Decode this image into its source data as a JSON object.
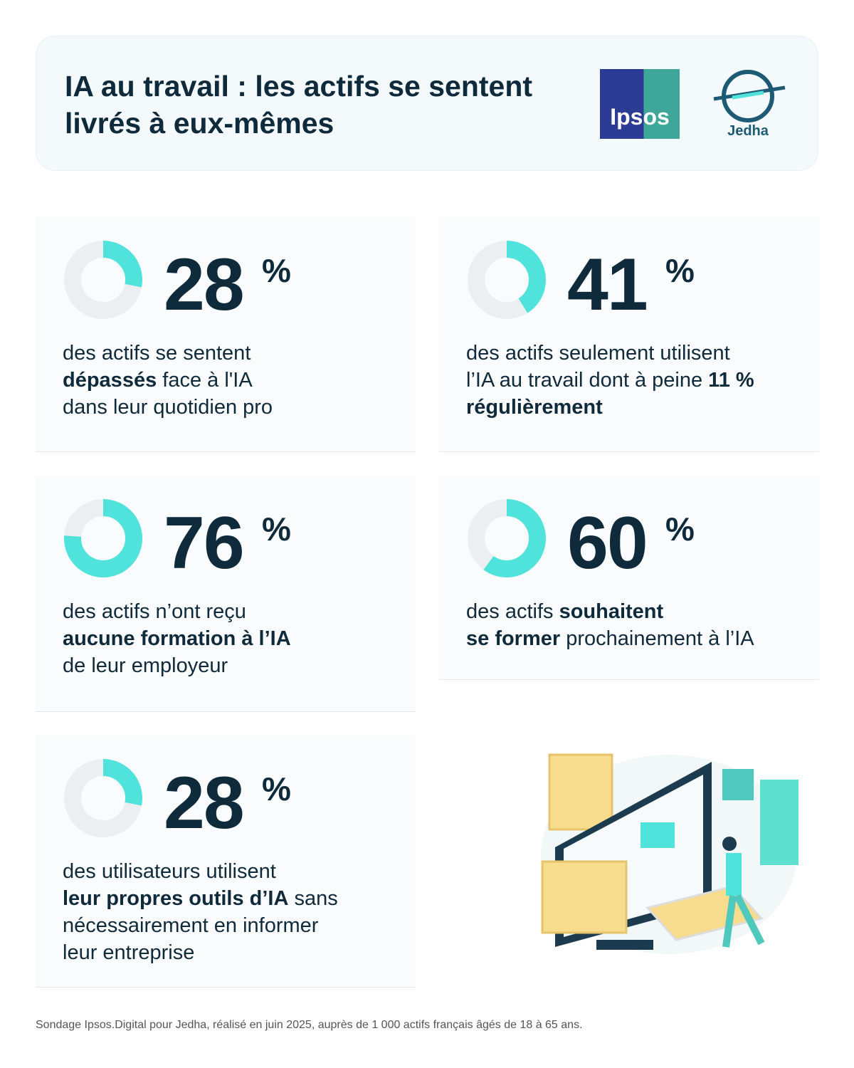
{
  "header": {
    "title": "IA au travail : les actifs se sentent livrés à eux-mêmes",
    "logos": [
      "Ipsos",
      "Jedha"
    ]
  },
  "stats": [
    {
      "value": 28,
      "unit": "%",
      "color": "#4fe3dc",
      "lines": [
        [
          {
            "text": "des actifs se sentent",
            "bold": false
          }
        ],
        [
          {
            "text": "dépassés",
            "bold": true
          },
          {
            "text": " face à l'IA",
            "bold": false
          }
        ],
        [
          {
            "text": "dans leur quotidien pro",
            "bold": false
          }
        ]
      ]
    },
    {
      "value": 41,
      "unit": "%",
      "color": "#4fe3dc",
      "lines": [
        [
          {
            "text": "des actifs seulement utilisent",
            "bold": false
          }
        ],
        [
          {
            "text": "l’IA au travail dont à peine ",
            "bold": false
          },
          {
            "text": "11 %",
            "bold": true
          }
        ],
        [
          {
            "text": "régulièrement",
            "bold": true
          }
        ]
      ]
    },
    {
      "value": 76,
      "unit": "%",
      "color": "#4fe3dc",
      "lines": [
        [
          {
            "text": "des actifs n’ont reçu",
            "bold": false
          }
        ],
        [
          {
            "text": "aucune formation à l’IA",
            "bold": true
          }
        ],
        [
          {
            "text": "de leur employeur",
            "bold": false
          }
        ]
      ]
    },
    {
      "value": 60,
      "unit": "%",
      "color": "#4fe3dc",
      "lines": [
        [
          {
            "text": "des actifs ",
            "bold": false
          },
          {
            "text": "souhaitent",
            "bold": true
          }
        ],
        [
          {
            "text": "se former",
            "bold": true
          },
          {
            "text": " prochainement à l’IA",
            "bold": false
          }
        ]
      ]
    },
    {
      "value": 28,
      "unit": "%",
      "color": "#4fe3dc",
      "lines": [
        [
          {
            "text": "des utilisateurs utilisent",
            "bold": false
          }
        ],
        [
          {
            "text": "leur propres outils d’IA",
            "bold": true
          },
          {
            "text": " sans",
            "bold": false
          }
        ],
        [
          {
            "text": "nécessairement en informer",
            "bold": false
          }
        ],
        [
          {
            "text": "leur entreprise",
            "bold": false
          }
        ]
      ]
    }
  ],
  "footnote": "Sondage Ipsos.Digital pour Jedha, réalisé en juin 2025, auprès de 1 000 actifs français âgés de 18 à 65 ans."
}
